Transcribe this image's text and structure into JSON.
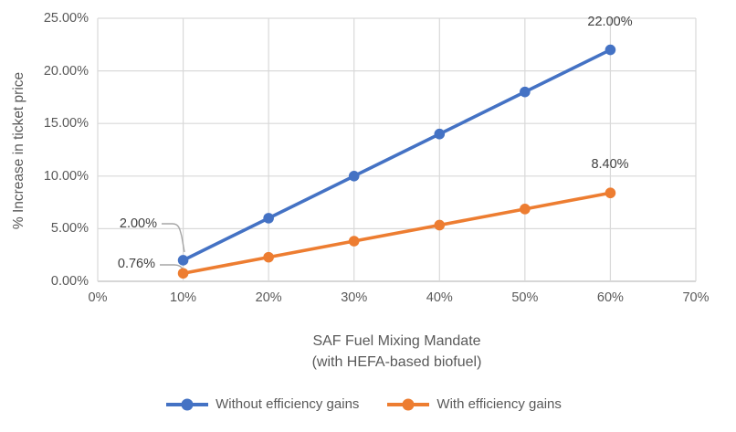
{
  "chart_data": {
    "type": "line",
    "title": "",
    "xlabel_line1": "SAF Fuel Mixing Mandate",
    "xlabel_line2": "(with HEFA-based biofuel)",
    "ylabel": "% Increase in ticket price",
    "x": [
      10,
      20,
      30,
      40,
      50,
      60
    ],
    "xlim": [
      0,
      70
    ],
    "ylim": [
      0,
      25
    ],
    "x_ticks": [
      "0%",
      "10%",
      "20%",
      "30%",
      "40%",
      "50%",
      "60%",
      "70%"
    ],
    "y_ticks_top_to_bottom": [
      "25.00%",
      "20.00%",
      "15.00%",
      "10.00%",
      "5.00%",
      "0.00%"
    ],
    "grid": true,
    "legend_position": "bottom",
    "series": [
      {
        "name": "Without efficiency gains",
        "color": "#4472C4",
        "values": [
          2.0,
          6.0,
          10.0,
          14.0,
          18.0,
          22.0
        ]
      },
      {
        "name": "With efficiency gains",
        "color": "#ED7D31",
        "values": [
          0.76,
          2.29,
          3.82,
          5.34,
          6.87,
          8.4
        ]
      }
    ],
    "annotations": [
      {
        "text": "2.00%",
        "series": 0,
        "point_index": 0,
        "placement": "left-callout"
      },
      {
        "text": "0.76%",
        "series": 1,
        "point_index": 0,
        "placement": "left-callout"
      },
      {
        "text": "22.00%",
        "series": 0,
        "point_index": 5,
        "placement": "above"
      },
      {
        "text": "8.40%",
        "series": 1,
        "point_index": 5,
        "placement": "above"
      }
    ]
  },
  "colors": {
    "grid": "#D9D9D9",
    "axis_line": "#BFBFBF",
    "tick_text": "#595959",
    "data_label_text": "#404040",
    "leader_line": "#A6A6A6",
    "background": "#FFFFFF"
  }
}
